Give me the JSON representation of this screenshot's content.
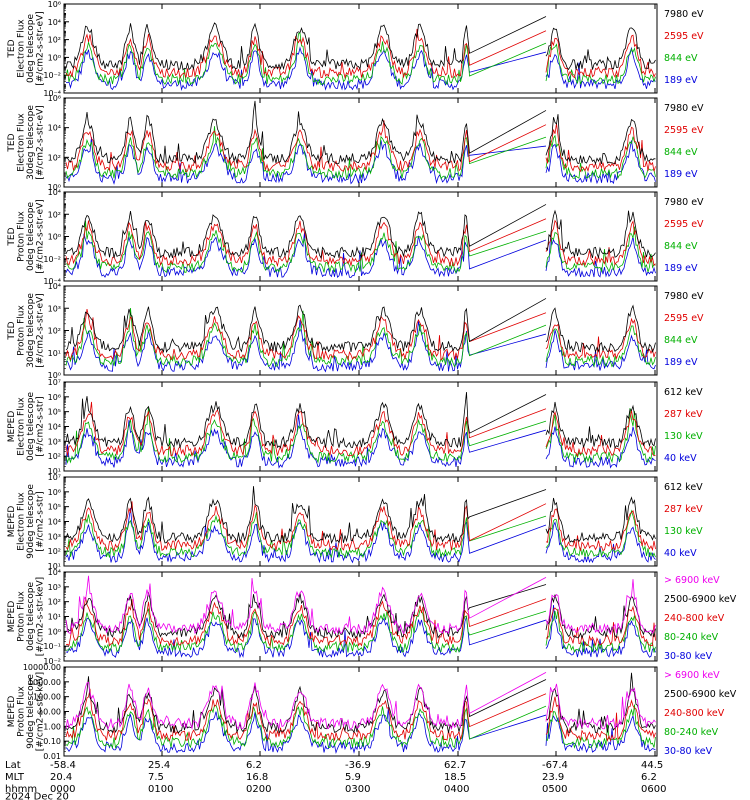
{
  "chart_data": [
    {
      "type": "line",
      "ylabel": [
        "TED",
        "Electron Flux",
        "0deg telescope",
        "[#/cm2-s-str-eV]"
      ],
      "yscale": "log",
      "ylim": [
        0.0001,
        1000000
      ],
      "yticks": [
        "10⁻²",
        "10⁰",
        "10²",
        "10⁴",
        "10⁶",
        "10⁻⁴"
      ],
      "series": [
        {
          "name": "7980 eV",
          "color": "#000000"
        },
        {
          "name": "2595 eV",
          "color": "#e00000"
        },
        {
          "name": "844 eV",
          "color": "#00b000"
        },
        {
          "name": "189 eV",
          "color": "#0000dd"
        }
      ]
    },
    {
      "type": "line",
      "ylabel": [
        "TED",
        "Electron Flux",
        "30deg telescope",
        "[#/cm2-s-str-eV]"
      ],
      "yscale": "log",
      "ylim": [
        1,
        1000000
      ],
      "yticks": [
        "10⁰",
        "10²",
        "10⁴",
        "10⁶"
      ],
      "series": [
        {
          "name": "7980 eV",
          "color": "#000000"
        },
        {
          "name": "2595 eV",
          "color": "#e00000"
        },
        {
          "name": "844 eV",
          "color": "#00b000"
        },
        {
          "name": "189 eV",
          "color": "#0000dd"
        }
      ]
    },
    {
      "type": "line",
      "ylabel": [
        "TED",
        "Proton Flux",
        "0deg telescope",
        "[#/cm2-s-str-eV]"
      ],
      "yscale": "log",
      "ylim": [
        0.0001,
        10000
      ],
      "yticks": [
        "10⁻⁴",
        "10⁻²",
        "10⁰",
        "10²",
        "10⁴"
      ],
      "series": [
        {
          "name": "7980 eV",
          "color": "#000000"
        },
        {
          "name": "2595 eV",
          "color": "#e00000"
        },
        {
          "name": "844 eV",
          "color": "#00b000"
        },
        {
          "name": "189 eV",
          "color": "#0000dd"
        }
      ]
    },
    {
      "type": "line",
      "ylabel": [
        "TED",
        "Proton Flux",
        "30deg telescope",
        "[#/cm2-s-str-eV]"
      ],
      "yscale": "log",
      "ylim": [
        1,
        10000
      ],
      "yticks": [
        "10⁰",
        "10¹",
        "10²",
        "10³",
        "10⁴"
      ],
      "series": [
        {
          "name": "7980 eV",
          "color": "#000000"
        },
        {
          "name": "2595 eV",
          "color": "#e00000"
        },
        {
          "name": "844 eV",
          "color": "#00b000"
        },
        {
          "name": "189 eV",
          "color": "#0000dd"
        }
      ]
    },
    {
      "type": "line",
      "ylabel": [
        "MEPED",
        "Electron Flux",
        "0deg telescope",
        "[#/cm2-s-str]"
      ],
      "yscale": "log",
      "ylim": [
        10,
        10000000
      ],
      "yticks": [
        "10¹",
        "10²",
        "10³",
        "10⁴",
        "10⁵",
        "10⁶",
        "10⁷"
      ],
      "series": [
        {
          "name": "612 keV",
          "color": "#000000"
        },
        {
          "name": "287 keV",
          "color": "#e00000"
        },
        {
          "name": "130 keV",
          "color": "#00b000"
        },
        {
          "name": "40 keV",
          "color": "#0000dd"
        }
      ]
    },
    {
      "type": "line",
      "ylabel": [
        "MEPED",
        "Electron Flux",
        "90deg telescope",
        "[#/cm2-s-str]"
      ],
      "yscale": "log",
      "ylim": [
        10,
        10000000
      ],
      "yticks": [
        "10¹",
        "10²",
        "10³",
        "10⁴",
        "10⁵",
        "10⁶",
        "10⁷"
      ],
      "series": [
        {
          "name": "612 keV",
          "color": "#000000"
        },
        {
          "name": "287 keV",
          "color": "#e00000"
        },
        {
          "name": "130 keV",
          "color": "#00b000"
        },
        {
          "name": "40 keV",
          "color": "#0000dd"
        }
      ]
    },
    {
      "type": "line",
      "ylabel": [
        "MEPED",
        "Proton Flux",
        "0deg telescope",
        "[#/cm2-s-str-keV]"
      ],
      "yscale": "log",
      "ylim": [
        0.01,
        10000
      ],
      "yticks": [
        "10⁻²",
        "10⁻¹",
        "10⁰",
        "10¹",
        "10²",
        "10³",
        "10⁴"
      ],
      "series": [
        {
          "name": "> 6900 keV",
          "color": "#ee00ee"
        },
        {
          "name": "2500-6900 keV",
          "color": "#000000"
        },
        {
          "name": "240-800 keV",
          "color": "#e00000"
        },
        {
          "name": "80-240 keV",
          "color": "#00b000"
        },
        {
          "name": "30-80 keV",
          "color": "#0000dd"
        }
      ]
    },
    {
      "type": "line",
      "ylabel": [
        "MEPED",
        "Proton Flux",
        "90deg telescope",
        "[#/cm2-s-str-keV]"
      ],
      "yscale": "log",
      "ylim": [
        0.01,
        10000
      ],
      "yticks": [
        "0.01",
        "0.10",
        "1.00",
        "10.00",
        "100.00",
        "1000.00",
        "10000.00"
      ],
      "series": [
        {
          "name": "> 6900 keV",
          "color": "#ee00ee"
        },
        {
          "name": "2500-6900 keV",
          "color": "#000000"
        },
        {
          "name": "240-800 keV",
          "color": "#e00000"
        },
        {
          "name": "80-240 keV",
          "color": "#00b000"
        },
        {
          "name": "30-80 keV",
          "color": "#0000dd"
        }
      ]
    }
  ],
  "x_axis": {
    "row_labels": [
      "Lat",
      "MLT",
      "hhmm"
    ],
    "ticks": [
      {
        "lat": "-58.4",
        "mlt": "20.4",
        "hhmm": "0000"
      },
      {
        "lat": "25.4",
        "mlt": "7.5",
        "hhmm": "0100"
      },
      {
        "lat": "6.2",
        "mlt": "16.8",
        "hhmm": "0200"
      },
      {
        "lat": "-36.9",
        "mlt": "5.9",
        "hhmm": "0300"
      },
      {
        "lat": "62.7",
        "mlt": "18.5",
        "hhmm": "0400"
      },
      {
        "lat": "-67.4",
        "mlt": "23.9",
        "hhmm": "0500"
      },
      {
        "lat": "44.5",
        "mlt": "6.2",
        "hhmm": "0600"
      }
    ],
    "date": "2024 Dec 20"
  }
}
